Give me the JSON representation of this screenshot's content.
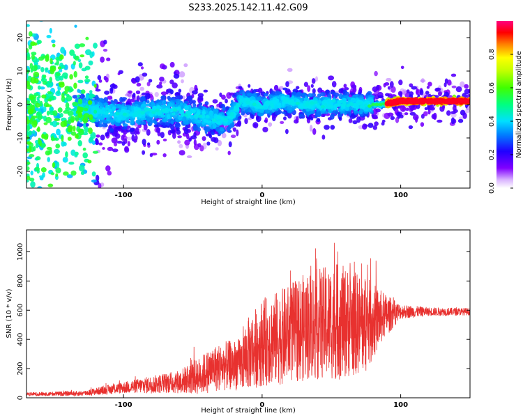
{
  "title": "S233.2025.142.11.42.G09",
  "colors": {
    "snr_line": "#e8312f",
    "axis": "#000000"
  },
  "chart_data": [
    {
      "type": "heatmap",
      "title": "S233.2025.142.11.42.G09",
      "xlabel": "Height of straight line (km)",
      "ylabel": "Frequency (Hz)",
      "xlim": [
        -170,
        150
      ],
      "ylim": [
        -25,
        25
      ],
      "x_ticks": [
        -100,
        0,
        100
      ],
      "y_ticks": [
        -20,
        -10,
        0,
        10,
        20
      ],
      "colorbar": {
        "label": "Normalized spectral amplitude",
        "range": [
          0,
          1
        ],
        "ticks": [
          0.0,
          0.2,
          0.4,
          0.6,
          0.8
        ],
        "tick_labels": [
          "0.0",
          "0.2",
          "0.4",
          "0.6",
          "0.8"
        ],
        "colormap": "rainbow"
      },
      "ridge_center_hz": [
        {
          "x": -130,
          "y": -1.5
        },
        {
          "x": -100,
          "y": -3
        },
        {
          "x": -80,
          "y": -2
        },
        {
          "x": -60,
          "y": -2
        },
        {
          "x": -40,
          "y": -4
        },
        {
          "x": -25,
          "y": -5
        },
        {
          "x": -15,
          "y": 1
        },
        {
          "x": 0,
          "y": -0.5
        },
        {
          "x": 15,
          "y": 1
        },
        {
          "x": 30,
          "y": 0
        },
        {
          "x": 50,
          "y": 0
        },
        {
          "x": 70,
          "y": 0
        },
        {
          "x": 85,
          "y": 0
        },
        {
          "x": 100,
          "y": 1
        },
        {
          "x": 120,
          "y": 1
        },
        {
          "x": 150,
          "y": 1
        }
      ]
    },
    {
      "type": "line",
      "title": "",
      "xlabel": "Height of straight line (km)",
      "ylabel": "SNR (10 * v/v)",
      "xlim": [
        -170,
        150
      ],
      "ylim": [
        0,
        1150
      ],
      "x_ticks": [
        -100,
        0,
        100
      ],
      "y_ticks": [
        0,
        200,
        400,
        600,
        800,
        1000
      ],
      "series": [
        {
          "name": "SNR",
          "envelope": [
            {
              "x": -170,
              "mean": 25,
              "amp": 12
            },
            {
              "x": -130,
              "mean": 30,
              "amp": 18
            },
            {
              "x": -100,
              "mean": 70,
              "amp": 40
            },
            {
              "x": -80,
              "mean": 90,
              "amp": 60
            },
            {
              "x": -60,
              "mean": 110,
              "amp": 80
            },
            {
              "x": -45,
              "mean": 150,
              "amp": 130
            },
            {
              "x": -35,
              "mean": 200,
              "amp": 160
            },
            {
              "x": -25,
              "mean": 220,
              "amp": 170
            },
            {
              "x": -15,
              "mean": 230,
              "amp": 180
            },
            {
              "x": -10,
              "mean": 300,
              "amp": 250
            },
            {
              "x": 0,
              "mean": 380,
              "amp": 300
            },
            {
              "x": 15,
              "mean": 420,
              "amp": 330
            },
            {
              "x": 35,
              "mean": 500,
              "amp": 380
            },
            {
              "x": 55,
              "mean": 520,
              "amp": 400
            },
            {
              "x": 75,
              "mean": 500,
              "amp": 330
            },
            {
              "x": 88,
              "mean": 560,
              "amp": 160
            },
            {
              "x": 100,
              "mean": 590,
              "amp": 50
            },
            {
              "x": 120,
              "mean": 590,
              "amp": 30
            },
            {
              "x": 150,
              "mean": 590,
              "amp": 25
            }
          ]
        }
      ]
    }
  ]
}
